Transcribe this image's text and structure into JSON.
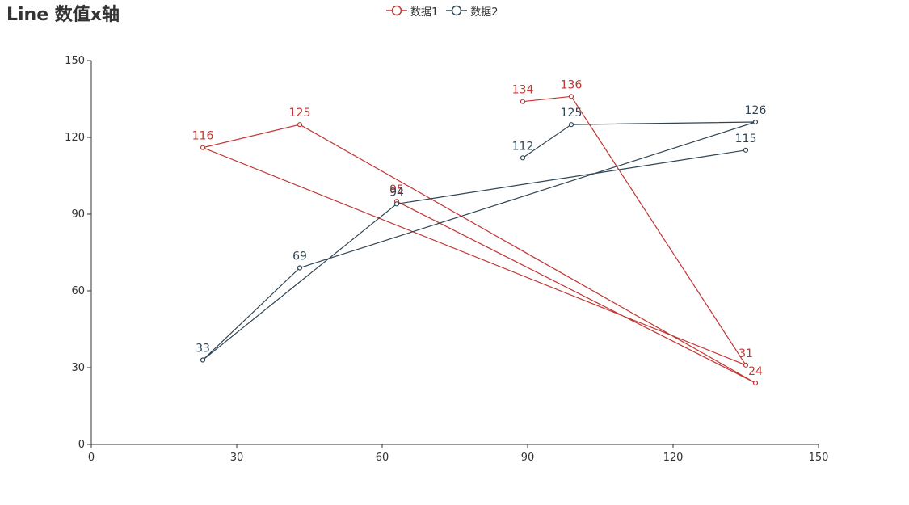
{
  "chart_data": {
    "type": "line",
    "title": "Line 数值x轴",
    "xlabel": "",
    "ylabel": "",
    "xlim": [
      0,
      150
    ],
    "ylim": [
      0,
      150
    ],
    "x_ticks": [
      0,
      30,
      60,
      90,
      120,
      150
    ],
    "y_ticks": [
      0,
      30,
      60,
      90,
      120,
      150
    ],
    "grid": false,
    "legend_position": "top-center",
    "series": [
      {
        "name": "数据1",
        "color": "#c23531",
        "points": [
          [
            89,
            134
          ],
          [
            99,
            136
          ],
          [
            135,
            31
          ],
          [
            23,
            116
          ],
          [
            43,
            125
          ],
          [
            137,
            24
          ],
          [
            63,
            95
          ]
        ]
      },
      {
        "name": "数据2",
        "color": "#2f4554",
        "points": [
          [
            89,
            112
          ],
          [
            99,
            125
          ],
          [
            137,
            126
          ],
          [
            43,
            69
          ],
          [
            23,
            33
          ],
          [
            63,
            94
          ],
          [
            135,
            115
          ]
        ]
      }
    ]
  }
}
